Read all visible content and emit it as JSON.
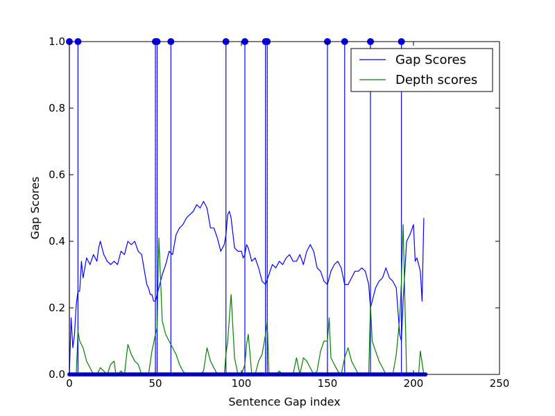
{
  "chart_data": {
    "type": "line",
    "title": "",
    "xlabel": "Sentence Gap index",
    "ylabel": "Gap Scores",
    "xlim": [
      0,
      250
    ],
    "ylim": [
      0,
      1
    ],
    "xticks": [
      "0",
      "50",
      "100",
      "150",
      "200",
      "250"
    ],
    "yticks": [
      "0.0",
      "0.2",
      "0.4",
      "0.6",
      "0.8",
      "1.0"
    ],
    "grid": false,
    "legend": {
      "position": "top-right",
      "entries": [
        "Gap Scores",
        "Depth scores"
      ]
    },
    "series": [
      {
        "name": "Gap Scores",
        "color": "#0000ff",
        "x": [
          0,
          1,
          2,
          3,
          4,
          5,
          6,
          7,
          8,
          10,
          12,
          14,
          16,
          17,
          18,
          20,
          22,
          24,
          26,
          28,
          30,
          32,
          34,
          36,
          38,
          40,
          42,
          44,
          45,
          46,
          47,
          48,
          49,
          50,
          51,
          52,
          54,
          56,
          58,
          60,
          62,
          64,
          66,
          68,
          70,
          72,
          74,
          76,
          78,
          80,
          82,
          84,
          86,
          88,
          90,
          91,
          92,
          93,
          94,
          96,
          98,
          100,
          101,
          102,
          103,
          104,
          106,
          108,
          110,
          112,
          114,
          116,
          118,
          120,
          122,
          124,
          126,
          128,
          130,
          132,
          134,
          136,
          138,
          140,
          142,
          144,
          146,
          148,
          150,
          152,
          154,
          156,
          158,
          160,
          162,
          164,
          166,
          168,
          170,
          172,
          174,
          175,
          176,
          178,
          180,
          182,
          184,
          186,
          188,
          190,
          192,
          193,
          194,
          196,
          198,
          200,
          201,
          202,
          204,
          205,
          206
        ],
        "values": [
          0.0,
          0.17,
          0.08,
          0.12,
          0.21,
          0.25,
          0.25,
          0.34,
          0.29,
          0.35,
          0.33,
          0.36,
          0.34,
          0.38,
          0.4,
          0.36,
          0.34,
          0.33,
          0.34,
          0.33,
          0.37,
          0.36,
          0.4,
          0.39,
          0.4,
          0.37,
          0.36,
          0.3,
          0.27,
          0.26,
          0.24,
          0.24,
          0.22,
          0.22,
          0.24,
          0.26,
          0.3,
          0.33,
          0.37,
          0.36,
          0.42,
          0.44,
          0.45,
          0.47,
          0.48,
          0.49,
          0.51,
          0.5,
          0.52,
          0.5,
          0.44,
          0.44,
          0.41,
          0.37,
          0.39,
          0.42,
          0.48,
          0.49,
          0.47,
          0.38,
          0.37,
          0.37,
          0.35,
          0.36,
          0.39,
          0.38,
          0.34,
          0.35,
          0.32,
          0.28,
          0.27,
          0.3,
          0.33,
          0.32,
          0.34,
          0.33,
          0.35,
          0.36,
          0.34,
          0.34,
          0.36,
          0.33,
          0.37,
          0.39,
          0.37,
          0.32,
          0.31,
          0.28,
          0.27,
          0.31,
          0.33,
          0.34,
          0.32,
          0.27,
          0.27,
          0.29,
          0.31,
          0.31,
          0.32,
          0.31,
          0.27,
          0.2,
          0.22,
          0.26,
          0.28,
          0.29,
          0.32,
          0.29,
          0.28,
          0.26,
          0.12,
          0.1,
          0.22,
          0.4,
          0.42,
          0.45,
          0.34,
          0.35,
          0.31,
          0.22,
          0.47
        ]
      },
      {
        "name": "Depth scores",
        "color": "#008000",
        "x": [
          0,
          4,
          5,
          6,
          8,
          10,
          12,
          14,
          16,
          18,
          20,
          22,
          24,
          26,
          27,
          28,
          30,
          32,
          34,
          36,
          38,
          40,
          42,
          44,
          46,
          48,
          50,
          51,
          52,
          54,
          56,
          58,
          60,
          62,
          64,
          66,
          68,
          70,
          72,
          74,
          76,
          78,
          80,
          82,
          84,
          86,
          88,
          90,
          91,
          92,
          94,
          96,
          98,
          100,
          102,
          103,
          104,
          106,
          108,
          110,
          112,
          114,
          115,
          116,
          118,
          120,
          122,
          124,
          126,
          128,
          130,
          132,
          134,
          136,
          138,
          140,
          142,
          144,
          146,
          148,
          150,
          151,
          152,
          154,
          156,
          158,
          160,
          162,
          164,
          166,
          168,
          170,
          172,
          174,
          175,
          176,
          178,
          180,
          182,
          184,
          186,
          188,
          190,
          192,
          193,
          194,
          196,
          198,
          200,
          202,
          203,
          204,
          206
        ],
        "values": [
          0.0,
          0.0,
          0.13,
          0.1,
          0.08,
          0.04,
          0.02,
          0.0,
          0.0,
          0.02,
          0.01,
          0.0,
          0.03,
          0.04,
          0.0,
          0.0,
          0.01,
          0.0,
          0.09,
          0.06,
          0.04,
          0.03,
          0.0,
          0.0,
          0.0,
          0.07,
          0.12,
          0.14,
          0.41,
          0.16,
          0.12,
          0.1,
          0.08,
          0.06,
          0.03,
          0.01,
          0.0,
          0.0,
          0.0,
          0.0,
          0.0,
          0.01,
          0.08,
          0.04,
          0.02,
          0.0,
          0.0,
          0.0,
          0.06,
          0.1,
          0.24,
          0.05,
          0.0,
          0.0,
          0.03,
          0.09,
          0.12,
          0.0,
          0.0,
          0.04,
          0.06,
          0.12,
          0.16,
          0.0,
          0.0,
          0.0,
          0.01,
          0.0,
          0.0,
          0.0,
          0.0,
          0.05,
          0.0,
          0.05,
          0.04,
          0.02,
          0.0,
          0.01,
          0.07,
          0.1,
          0.1,
          0.17,
          0.05,
          0.03,
          0.01,
          0.0,
          0.05,
          0.08,
          0.04,
          0.02,
          0.0,
          0.0,
          0.0,
          0.0,
          0.21,
          0.1,
          0.07,
          0.04,
          0.02,
          0.0,
          0.0,
          0.0,
          0.06,
          0.17,
          0.28,
          0.45,
          0.0,
          0.0,
          0.0,
          0.0,
          0.0,
          0.07,
          0.0
        ]
      }
    ],
    "boundaries": {
      "color": "#0000ff",
      "x": [
        0,
        5,
        50,
        51,
        59,
        91,
        102,
        114,
        115,
        150,
        160,
        175,
        193
      ]
    },
    "reference_lines": [
      {
        "x": 51,
        "color": "#cc00cc",
        "style": "dashed"
      },
      {
        "x": 115,
        "color": "#cc8800",
        "style": "dashed"
      }
    ],
    "baseline_markers": {
      "color": "#0000ff",
      "from": 0,
      "to": 207,
      "y": 0
    }
  }
}
